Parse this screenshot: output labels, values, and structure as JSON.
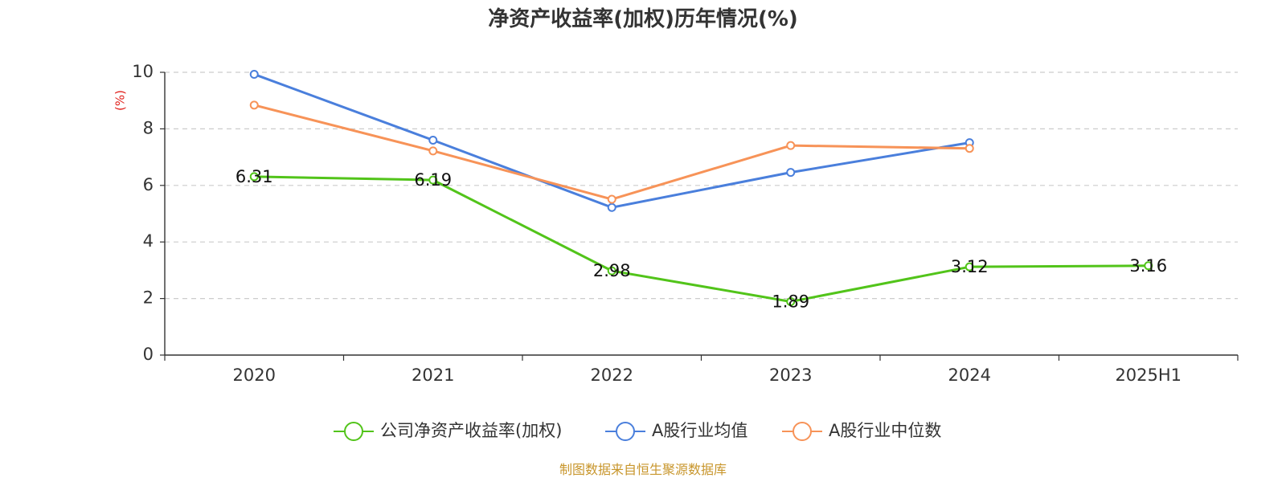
{
  "chart_data": {
    "type": "line",
    "title": "净资产收益率(加权)历年情况(%)",
    "y_unit": "(%)",
    "categories": [
      "2020",
      "2021",
      "2022",
      "2023",
      "2024",
      "2025H1"
    ],
    "ylim": [
      0,
      10
    ],
    "yticks": [
      "0",
      "2",
      "4",
      "6",
      "8",
      "10"
    ],
    "grid": true,
    "legend_position": "bottom",
    "series": [
      {
        "name": "公司净资产收益率(加权)",
        "color": "#52c41a",
        "values": [
          6.31,
          6.19,
          2.98,
          1.89,
          3.12,
          3.16
        ],
        "labels": [
          "6.31",
          "6.19",
          "2.98",
          "1.89",
          "3.12",
          "3.16"
        ]
      },
      {
        "name": "A股行业均值",
        "color": "#4a7fdc",
        "values": [
          9.93,
          7.6,
          5.22,
          6.46,
          7.51,
          null
        ]
      },
      {
        "name": "A股行业中位数",
        "color": "#f79358",
        "values": [
          8.84,
          7.22,
          5.51,
          7.41,
          7.31,
          null
        ]
      }
    ],
    "source": "制图数据来自恒生聚源数据库"
  }
}
